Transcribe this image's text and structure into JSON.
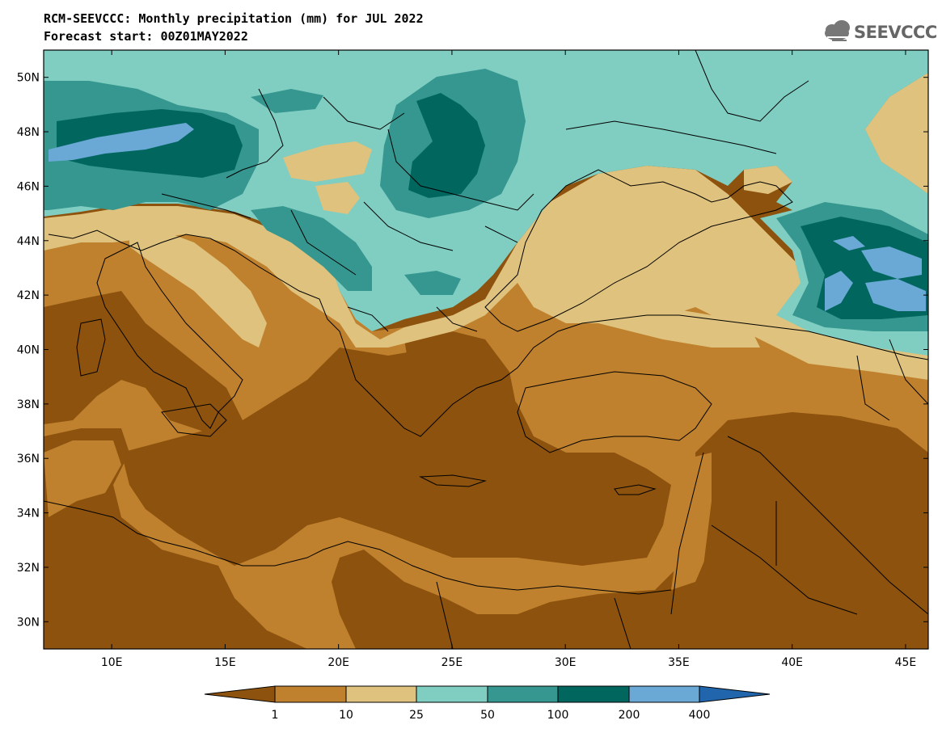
{
  "title": {
    "line1": "RCM-SEEVCCC: Monthly precipitation (mm) for JUL 2022",
    "line2": "Forecast start: 00Z01MAY2022"
  },
  "logo": {
    "text": "SEEVCCC",
    "icon": "cloud-logo-icon"
  },
  "map": {
    "lon_range": [
      7,
      46
    ],
    "lat_range": [
      29,
      51
    ],
    "lon_ticks": [
      "10E",
      "15E",
      "20E",
      "25E",
      "30E",
      "35E",
      "40E",
      "45E"
    ],
    "lat_ticks": [
      "30N",
      "32N",
      "34N",
      "36N",
      "38N",
      "40N",
      "42N",
      "44N",
      "46N",
      "48N",
      "50N"
    ]
  },
  "colorbar": {
    "boundaries": [
      "1",
      "10",
      "25",
      "50",
      "100",
      "200",
      "400"
    ],
    "colors": {
      "lt1": "#8c520e",
      "b1_10": "#bf812d",
      "b10_25": "#dfc27d",
      "b25_50": "#80cdc1",
      "b50_100": "#35978f",
      "b100_200": "#01665e",
      "b200_400": "#6aa9d6",
      "gt400": "#2166ac"
    }
  }
}
